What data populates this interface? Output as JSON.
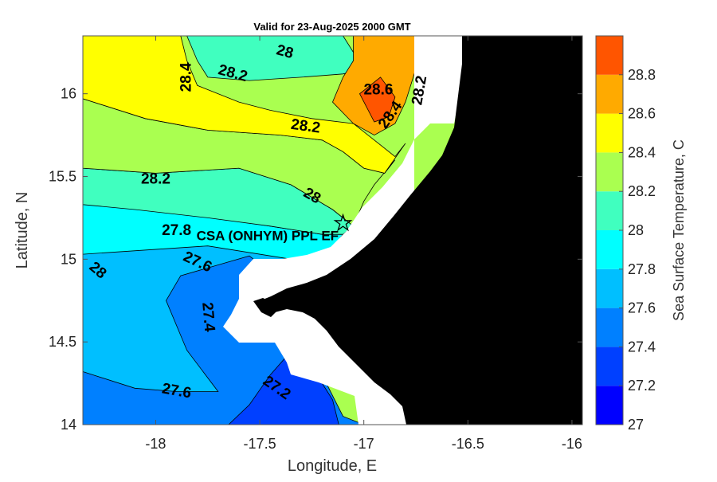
{
  "chart_data": {
    "type": "heatmap",
    "title": "Valid for 23-Aug-2025 2000 GMT",
    "xlabel": "Longitude, E",
    "ylabel": "Latitude, N",
    "xlim": [
      -18.35,
      -15.95
    ],
    "ylim": [
      14.0,
      16.35
    ],
    "xticks": [
      -18,
      -17.5,
      -17,
      -16.5,
      -16
    ],
    "yticks": [
      14,
      14.5,
      15,
      15.5,
      16
    ],
    "colorbar": {
      "label": "Sea Surface Temperature, C",
      "levels": [
        27,
        27.2,
        27.4,
        27.6,
        27.8,
        28,
        28.2,
        28.4,
        28.6,
        28.8
      ],
      "colors": [
        "#0000ff",
        "#0040ff",
        "#0080ff",
        "#00bfff",
        "#00ffff",
        "#40ffbf",
        "#aaff50",
        "#ffff00",
        "#ffaa00",
        "#ff5500"
      ]
    },
    "zones": [
      {
        "level": 27.6,
        "polygon": [
          [
            -18.35,
            15.05
          ],
          [
            -17.75,
            15.1
          ],
          [
            -17.35,
            15.0
          ],
          [
            -17.2,
            15.0
          ],
          [
            -17.25,
            14.8
          ],
          [
            -17.3,
            14.72
          ],
          [
            -17.4,
            14.55
          ],
          [
            -17.4,
            14.4
          ],
          [
            -17.35,
            14.25
          ],
          [
            -17.3,
            14.05
          ],
          [
            -17.0,
            14.0
          ],
          [
            -18.35,
            14.0
          ]
        ]
      },
      {
        "level": 27.4,
        "polygon": [
          [
            -18.35,
            14.32
          ],
          [
            -18.1,
            14.22
          ],
          [
            -17.9,
            14.2
          ],
          [
            -17.7,
            14.2
          ],
          [
            -17.85,
            14.45
          ],
          [
            -17.95,
            14.75
          ],
          [
            -17.88,
            14.9
          ],
          [
            -17.55,
            15.02
          ],
          [
            -17.45,
            14.92
          ],
          [
            -17.38,
            14.75
          ],
          [
            -17.3,
            14.6
          ],
          [
            -17.3,
            14.45
          ],
          [
            -17.2,
            14.3
          ],
          [
            -17.1,
            14.05
          ],
          [
            -17.0,
            14.0
          ],
          [
            -18.35,
            14.0
          ]
        ]
      },
      {
        "level": 27.2,
        "polygon": [
          [
            -17.65,
            14.0
          ],
          [
            -17.55,
            14.12
          ],
          [
            -17.45,
            14.3
          ],
          [
            -17.38,
            14.4
          ],
          [
            -17.3,
            14.4
          ],
          [
            -17.2,
            14.25
          ],
          [
            -17.15,
            14.15
          ],
          [
            -17.12,
            14.0
          ]
        ]
      },
      {
        "level": 27.8,
        "polygon": [
          [
            -18.35,
            15.35
          ],
          [
            -18.0,
            15.3
          ],
          [
            -17.7,
            15.25
          ],
          [
            -17.45,
            15.2
          ],
          [
            -17.2,
            15.15
          ],
          [
            -17.1,
            15.15
          ],
          [
            -17.2,
            15.0
          ],
          [
            -17.35,
            15.0
          ],
          [
            -17.75,
            15.08
          ],
          [
            -18.35,
            15.03
          ]
        ]
      },
      {
        "level": 28.0,
        "polygon": [
          [
            -18.35,
            15.55
          ],
          [
            -18.0,
            15.52
          ],
          [
            -17.6,
            15.55
          ],
          [
            -17.35,
            15.45
          ],
          [
            -17.15,
            15.3
          ],
          [
            -17.05,
            15.2
          ],
          [
            -17.1,
            15.15
          ],
          [
            -17.2,
            15.15
          ],
          [
            -17.45,
            15.2
          ],
          [
            -17.75,
            15.25
          ],
          [
            -18.1,
            15.3
          ],
          [
            -18.35,
            15.33
          ]
        ]
      },
      {
        "level": 28.2,
        "polygon": [
          [
            -18.35,
            15.97
          ],
          [
            -18.05,
            15.85
          ],
          [
            -17.75,
            15.78
          ],
          [
            -17.4,
            15.75
          ],
          [
            -17.2,
            15.72
          ],
          [
            -17.1,
            15.65
          ],
          [
            -17.0,
            15.55
          ],
          [
            -16.9,
            15.52
          ],
          [
            -16.85,
            15.6
          ],
          [
            -16.95,
            15.45
          ],
          [
            -17.0,
            15.35
          ],
          [
            -17.05,
            15.2
          ],
          [
            -17.15,
            15.3
          ],
          [
            -17.35,
            15.45
          ],
          [
            -17.6,
            15.55
          ],
          [
            -18.0,
            15.52
          ],
          [
            -18.35,
            15.55
          ]
        ]
      },
      {
        "level": 28.4,
        "polygon": [
          [
            -18.35,
            16.35
          ],
          [
            -17.88,
            16.35
          ],
          [
            -17.85,
            16.2
          ],
          [
            -17.8,
            16.05
          ],
          [
            -17.6,
            15.95
          ],
          [
            -17.45,
            15.9
          ],
          [
            -17.25,
            15.85
          ],
          [
            -17.05,
            15.82
          ],
          [
            -16.95,
            15.72
          ],
          [
            -16.85,
            15.62
          ],
          [
            -16.8,
            15.7
          ],
          [
            -16.9,
            15.52
          ],
          [
            -17.0,
            15.55
          ],
          [
            -17.1,
            15.65
          ],
          [
            -17.2,
            15.72
          ],
          [
            -17.4,
            15.75
          ],
          [
            -17.75,
            15.78
          ],
          [
            -18.05,
            15.85
          ],
          [
            -18.35,
            15.97
          ]
        ]
      },
      {
        "level": 28.0,
        "polygon": [
          [
            -17.85,
            16.35
          ],
          [
            -17.1,
            16.35
          ],
          [
            -17.0,
            16.15
          ],
          [
            -17.1,
            16.12
          ],
          [
            -17.3,
            16.1
          ],
          [
            -17.55,
            16.08
          ],
          [
            -17.75,
            16.1
          ],
          [
            -17.8,
            16.2
          ]
        ]
      },
      {
        "level": 28.6,
        "polygon": [
          [
            -17.05,
            16.35
          ],
          [
            -16.72,
            16.35
          ],
          [
            -16.75,
            16.15
          ],
          [
            -16.8,
            15.95
          ],
          [
            -16.85,
            15.82
          ],
          [
            -16.95,
            15.75
          ],
          [
            -17.05,
            15.82
          ],
          [
            -17.15,
            15.95
          ],
          [
            -17.1,
            16.1
          ],
          [
            -17.05,
            16.2
          ]
        ]
      },
      {
        "level": 28.8,
        "polygon": [
          [
            -17.02,
            16.0
          ],
          [
            -16.92,
            16.1
          ],
          [
            -16.85,
            15.98
          ],
          [
            -16.88,
            15.86
          ],
          [
            -16.95,
            15.83
          ]
        ]
      }
    ],
    "contour_labels": [
      {
        "text": "28",
        "x": -17.38,
        "y": 16.25,
        "angle": 15
      },
      {
        "text": "28.2",
        "x": -17.63,
        "y": 16.12,
        "angle": 15
      },
      {
        "text": "28.4",
        "x": -17.85,
        "y": 16.1,
        "angle": -90
      },
      {
        "text": "28.6",
        "x": -16.93,
        "y": 16.02,
        "angle": 0
      },
      {
        "text": "28.4",
        "x": -16.87,
        "y": 15.87,
        "angle": -55
      },
      {
        "text": "28.2",
        "x": -16.73,
        "y": 16.02,
        "angle": -80
      },
      {
        "text": "28.2",
        "x": -17.28,
        "y": 15.8,
        "angle": 8
      },
      {
        "text": "28.2",
        "x": -18.0,
        "y": 15.48,
        "angle": 0
      },
      {
        "text": "28",
        "x": -17.25,
        "y": 15.38,
        "angle": 30
      },
      {
        "text": "27.8",
        "x": -17.9,
        "y": 15.17,
        "angle": 0
      },
      {
        "text": "27.6",
        "x": -17.8,
        "y": 14.98,
        "angle": 25
      },
      {
        "text": "28",
        "x": -18.28,
        "y": 14.93,
        "angle": 40
      },
      {
        "text": "27.4",
        "x": -17.75,
        "y": 14.65,
        "angle": 85
      },
      {
        "text": "27.6",
        "x": -17.9,
        "y": 14.2,
        "angle": 10
      },
      {
        "text": "27.2",
        "x": -17.42,
        "y": 14.22,
        "angle": 35
      }
    ],
    "site": {
      "name": "CSA (ONHYM) PPL EF",
      "x": -17.1,
      "y": 15.22
    }
  }
}
